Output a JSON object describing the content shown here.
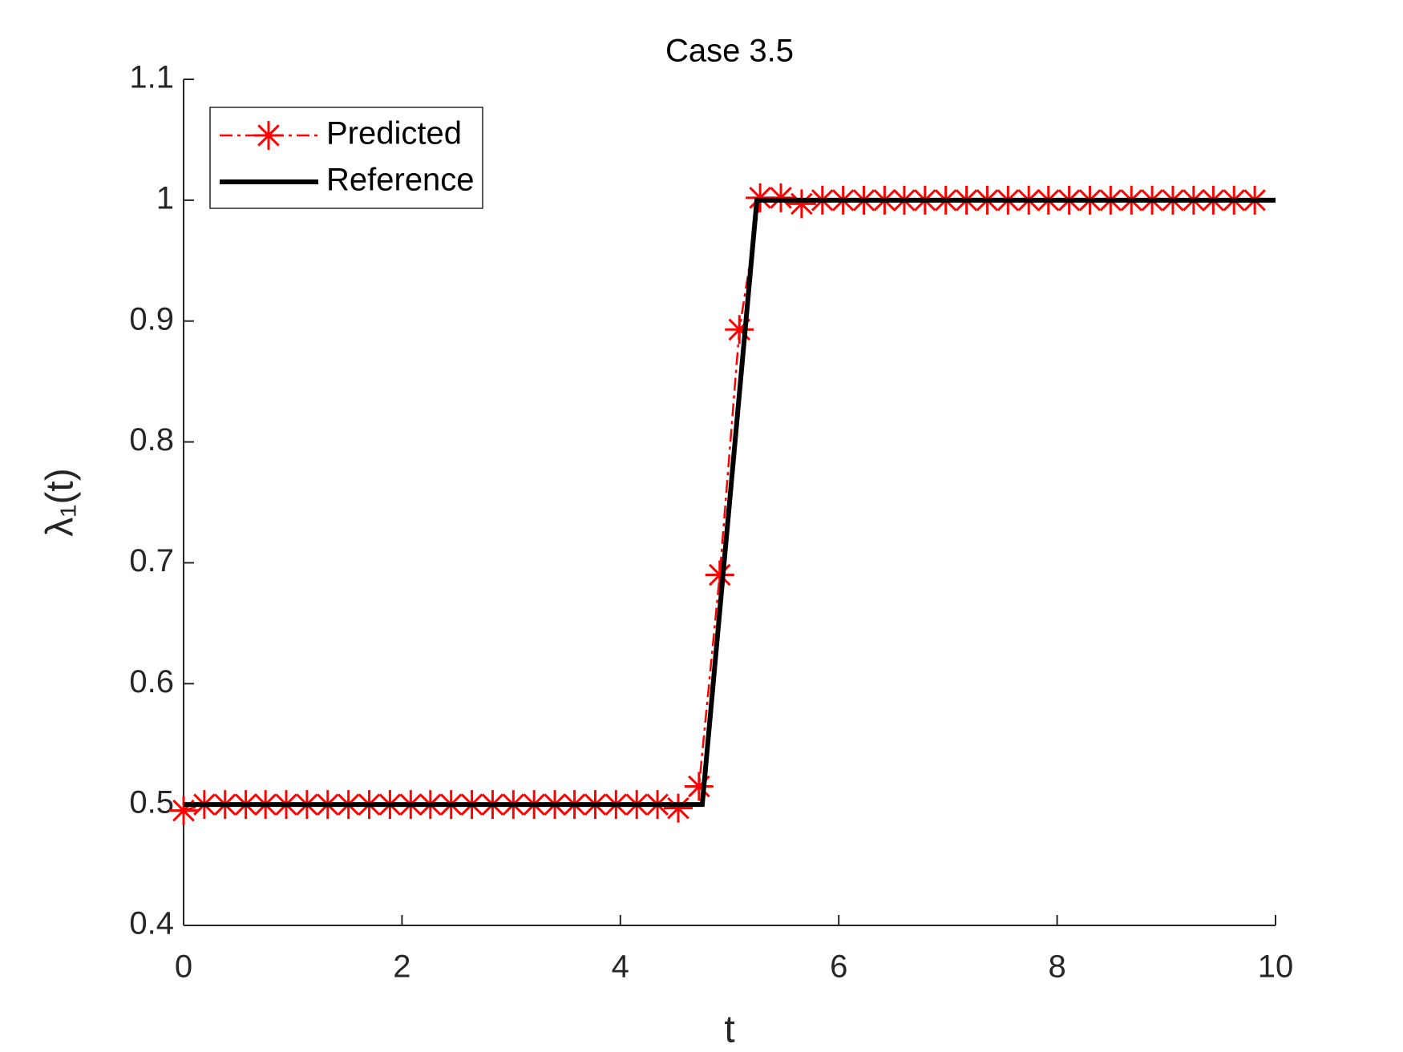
{
  "chart_data": {
    "type": "line",
    "title": "Case 3.5",
    "xlabel": "t",
    "ylabel": "λ₁(t)",
    "series": [
      {
        "name": "Predicted",
        "color": "#ff0000",
        "line": "dashdot",
        "marker": "asterisk",
        "x": [
          0,
          0.19,
          0.38,
          0.57,
          0.75,
          0.94,
          1.13,
          1.32,
          1.51,
          1.7,
          1.89,
          2.08,
          2.26,
          2.45,
          2.64,
          2.83,
          3.02,
          3.21,
          3.4,
          3.58,
          3.77,
          3.96,
          4.15,
          4.34,
          4.53,
          4.72,
          4.91,
          5.09,
          5.28,
          5.47,
          5.66,
          5.85,
          6.04,
          6.23,
          6.42,
          6.6,
          6.79,
          6.98,
          7.17,
          7.36,
          7.55,
          7.74,
          7.92,
          8.11,
          8.3,
          8.49,
          8.68,
          8.87,
          9.06,
          9.25,
          9.43,
          9.62,
          9.81
        ],
        "values": [
          0.495,
          0.5,
          0.5,
          0.5,
          0.5,
          0.5,
          0.5,
          0.5,
          0.5,
          0.5,
          0.5,
          0.5,
          0.5,
          0.5,
          0.5,
          0.5,
          0.5,
          0.5,
          0.5,
          0.5,
          0.5,
          0.5,
          0.5,
          0.5,
          0.497,
          0.515,
          0.69,
          0.893,
          1.002,
          1.002,
          0.997,
          1,
          1,
          1,
          1,
          1,
          1,
          1,
          1,
          1,
          1,
          1,
          1,
          1,
          1,
          1,
          1,
          1,
          1,
          1,
          1,
          1,
          1
        ]
      },
      {
        "name": "Reference",
        "color": "#000000",
        "line": "solid",
        "x": [
          0,
          4.75,
          5.25,
          10
        ],
        "values": [
          0.5,
          0.5,
          1,
          1
        ]
      }
    ],
    "xlim": [
      0,
      10
    ],
    "xticks": [
      0,
      2,
      4,
      6,
      8,
      10
    ],
    "ylim": [
      0.4,
      1.1
    ],
    "yticks": [
      0.4,
      0.5,
      0.6,
      0.7,
      0.8,
      0.9,
      1,
      1.1
    ],
    "grid": false,
    "legend": "top-left"
  }
}
